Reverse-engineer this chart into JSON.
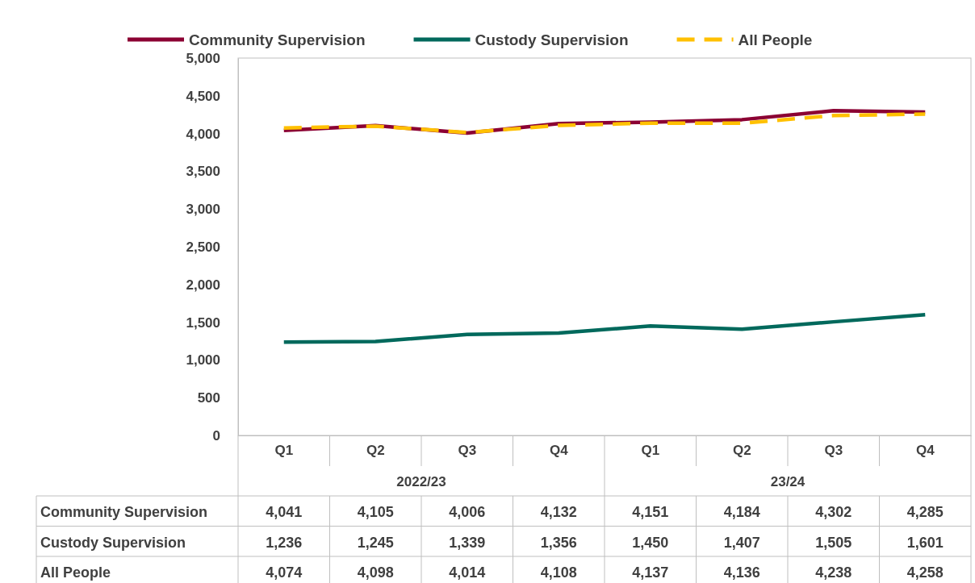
{
  "chart_data": {
    "type": "line",
    "categories": [
      "Q1",
      "Q2",
      "Q3",
      "Q4",
      "Q1",
      "Q2",
      "Q3",
      "Q4"
    ],
    "annotations": [
      "2022/23",
      "23/24"
    ],
    "series": [
      {
        "name": "Community Supervision",
        "color": "#8b0033",
        "line_style": "solid",
        "values": [
          4041,
          4105,
          4006,
          4132,
          4151,
          4184,
          4302,
          4285
        ],
        "value_labels": [
          "4,041",
          "4,105",
          "4,006",
          "4,132",
          "4,151",
          "4,184",
          "4,302",
          "4,285"
        ]
      },
      {
        "name": "Custody Supervision",
        "color": "#00695c",
        "line_style": "solid",
        "values": [
          1236,
          1245,
          1339,
          1356,
          1450,
          1407,
          1505,
          1601
        ],
        "value_labels": [
          "1,236",
          "1,245",
          "1,339",
          "1,356",
          "1,450",
          "1,407",
          "1,505",
          "1,601"
        ]
      },
      {
        "name": "All People",
        "color": "#ffc000",
        "line_style": "dashed",
        "values": [
          4074,
          4098,
          4014,
          4108,
          4137,
          4136,
          4238,
          4258
        ],
        "value_labels": [
          "4,074",
          "4,098",
          "4,014",
          "4,108",
          "4,137",
          "4,136",
          "4,238",
          "4,258"
        ]
      }
    ],
    "ylim": [
      0,
      5000
    ],
    "yticks": [
      {
        "value": 0,
        "label": "0"
      },
      {
        "value": 500,
        "label": "500"
      },
      {
        "value": 1000,
        "label": "1,000"
      },
      {
        "value": 1500,
        "label": "1,500"
      },
      {
        "value": 2000,
        "label": "2,000"
      },
      {
        "value": 2500,
        "label": "2,500"
      },
      {
        "value": 3000,
        "label": "3,000"
      },
      {
        "value": 3500,
        "label": "3,500"
      },
      {
        "value": 4000,
        "label": "4,000"
      },
      {
        "value": 4500,
        "label": "4,500"
      },
      {
        "value": 5000,
        "label": "5,000"
      }
    ],
    "grid": false,
    "legend": "top",
    "marker": "none"
  }
}
